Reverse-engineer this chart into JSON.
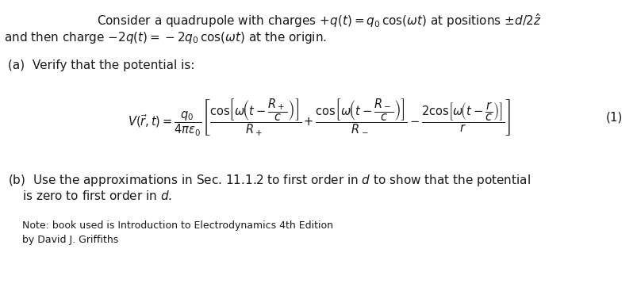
{
  "background_color": "#ffffff",
  "fig_width": 8.04,
  "fig_height": 3.72,
  "dpi": 100,
  "text_color": "#1a1a1a",
  "line1": "Consider a quadrupole with charges $+q(t) = q_0\\,\\cos(\\omega t)$ at positions $\\pm d/2\\hat{z}$",
  "line2": "and then charge $-2q(t) = -2q_0\\,\\cos(\\omega t)$ at the origin.",
  "line_a": "(a)\\;\\; Verify that the potential is:",
  "equation": "$V(\\vec{r},t) = \\dfrac{q_0}{4\\pi\\epsilon_0}\\left[\\dfrac{\\cos\\!\\left[\\omega\\!\\left(t - \\dfrac{R_+}{c}\\right)\\right]}{R_+} + \\dfrac{\\cos\\!\\left[\\omega\\!\\left(t - \\dfrac{R_-}{c}\\right)\\right]}{R_-} - \\dfrac{2\\cos\\!\\left[\\omega\\!\\left(t - \\dfrac{r}{c}\\right)\\right]}{r}\\right]$",
  "eq_label": "(1)",
  "line_b1": "(b)\\;\\; Use the approximations in Sec. 11.1.2 to first order in $d$ to show that the potential",
  "line_b2": "\\quad\\quad\\; is zero to first order in $d$.",
  "note1": "Note: book used is Introduction to Electrodynamics 4th Edition",
  "note2": "by David J. Griffiths",
  "fs_body": 11,
  "fs_eq": 10.5,
  "fs_note": 9
}
